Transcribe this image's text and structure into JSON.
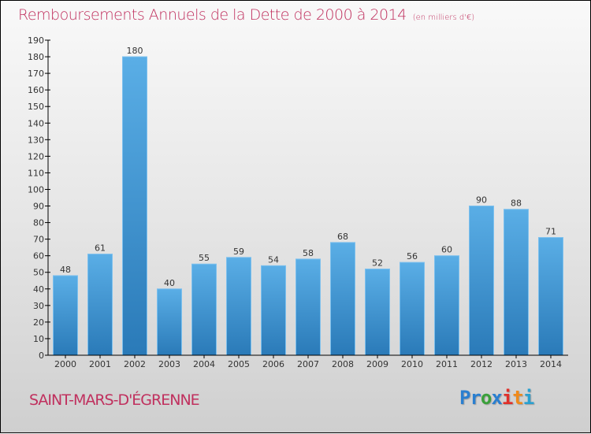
{
  "header": {
    "title": "Remboursements Annuels de la Dette de 2000 à 2014",
    "subtitle": "(en milliers d'€)"
  },
  "footer": {
    "commune": "SAINT-MARS-D'ÉGRENNE",
    "logo": [
      "P",
      "r",
      "o",
      "x",
      "i",
      "t",
      "i"
    ],
    "logo_colors": [
      "#2a7fd0",
      "#2a7fd0",
      "#3aa03a",
      "#2a7fd0",
      "#e0302a",
      "#f08a1a",
      "#2aa0d0"
    ]
  },
  "chart_data": {
    "type": "bar",
    "title": "Remboursements Annuels de la Dette de 2000 à 2014",
    "subtitle": "(en milliers d'€)",
    "xlabel": "",
    "ylabel": "",
    "categories": [
      "2000",
      "2001",
      "2002",
      "2003",
      "2004",
      "2005",
      "2006",
      "2007",
      "2008",
      "2009",
      "2010",
      "2011",
      "2012",
      "2013",
      "2014"
    ],
    "values": [
      48,
      61,
      180,
      40,
      55,
      59,
      54,
      58,
      68,
      52,
      56,
      60,
      90,
      88,
      71
    ],
    "ylim": [
      0,
      190
    ],
    "yticks": [
      0,
      10,
      20,
      30,
      40,
      50,
      60,
      70,
      80,
      90,
      100,
      110,
      120,
      130,
      140,
      150,
      160,
      170,
      180,
      190
    ],
    "grid": false,
    "legend": "none",
    "bar_color_top": "#5aaee6",
    "bar_color_bottom": "#2a7ab8"
  }
}
